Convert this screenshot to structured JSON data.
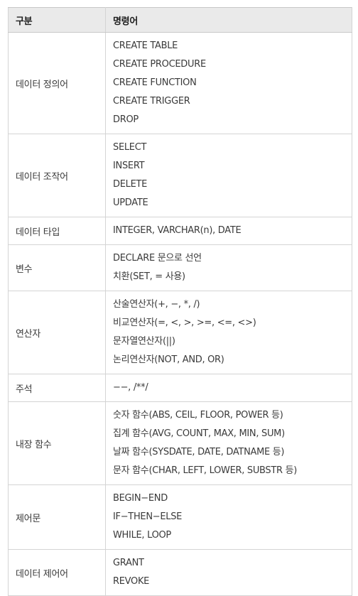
{
  "header": {
    "col1": "구분",
    "col2": "명령어"
  },
  "rows": [
    {
      "category": "데이터 정의어",
      "commands": [
        "CREATE TABLE",
        "CREATE PROCEDURE",
        "CREATE FUNCTION",
        "CREATE TRIGGER",
        "DROP"
      ]
    },
    {
      "category": "데이터 조작어",
      "commands": [
        "SELECT",
        "INSERT",
        "DELETE",
        "UPDATE"
      ]
    },
    {
      "category": "데이터 타입",
      "commands": [
        "INTEGER, VARCHAR(n), DATE"
      ]
    },
    {
      "category": "변수",
      "commands": [
        "DECLARE 문으로 선언",
        "치환(SET, = 사용)"
      ]
    },
    {
      "category": "연산자",
      "commands": [
        "산술연산자(+, −, *, /)",
        "비교연산자(=, <, >, >=, <=, <>)",
        "문자열연산자(||)",
        "논리연산자(NOT, AND, OR)"
      ]
    },
    {
      "category": "주석",
      "commands": [
        "−−, /**/"
      ]
    },
    {
      "category": "내장 함수",
      "commands": [
        "숫자 함수(ABS, CEIL, FLOOR, POWER 등)",
        "집계 함수(AVG, COUNT, MAX, MIN, SUM)",
        "날짜 함수(SYSDATE, DATE, DATNAME 등)",
        "문자 함수(CHAR, LEFT, LOWER, SUBSTR 등)"
      ]
    },
    {
      "category": "제어문",
      "commands": [
        "BEGIN−END",
        "IF−THEN−ELSE",
        "WHILE, LOOP"
      ]
    },
    {
      "category": "데이터 제어어",
      "commands": [
        "GRANT",
        "REVOKE"
      ]
    }
  ]
}
